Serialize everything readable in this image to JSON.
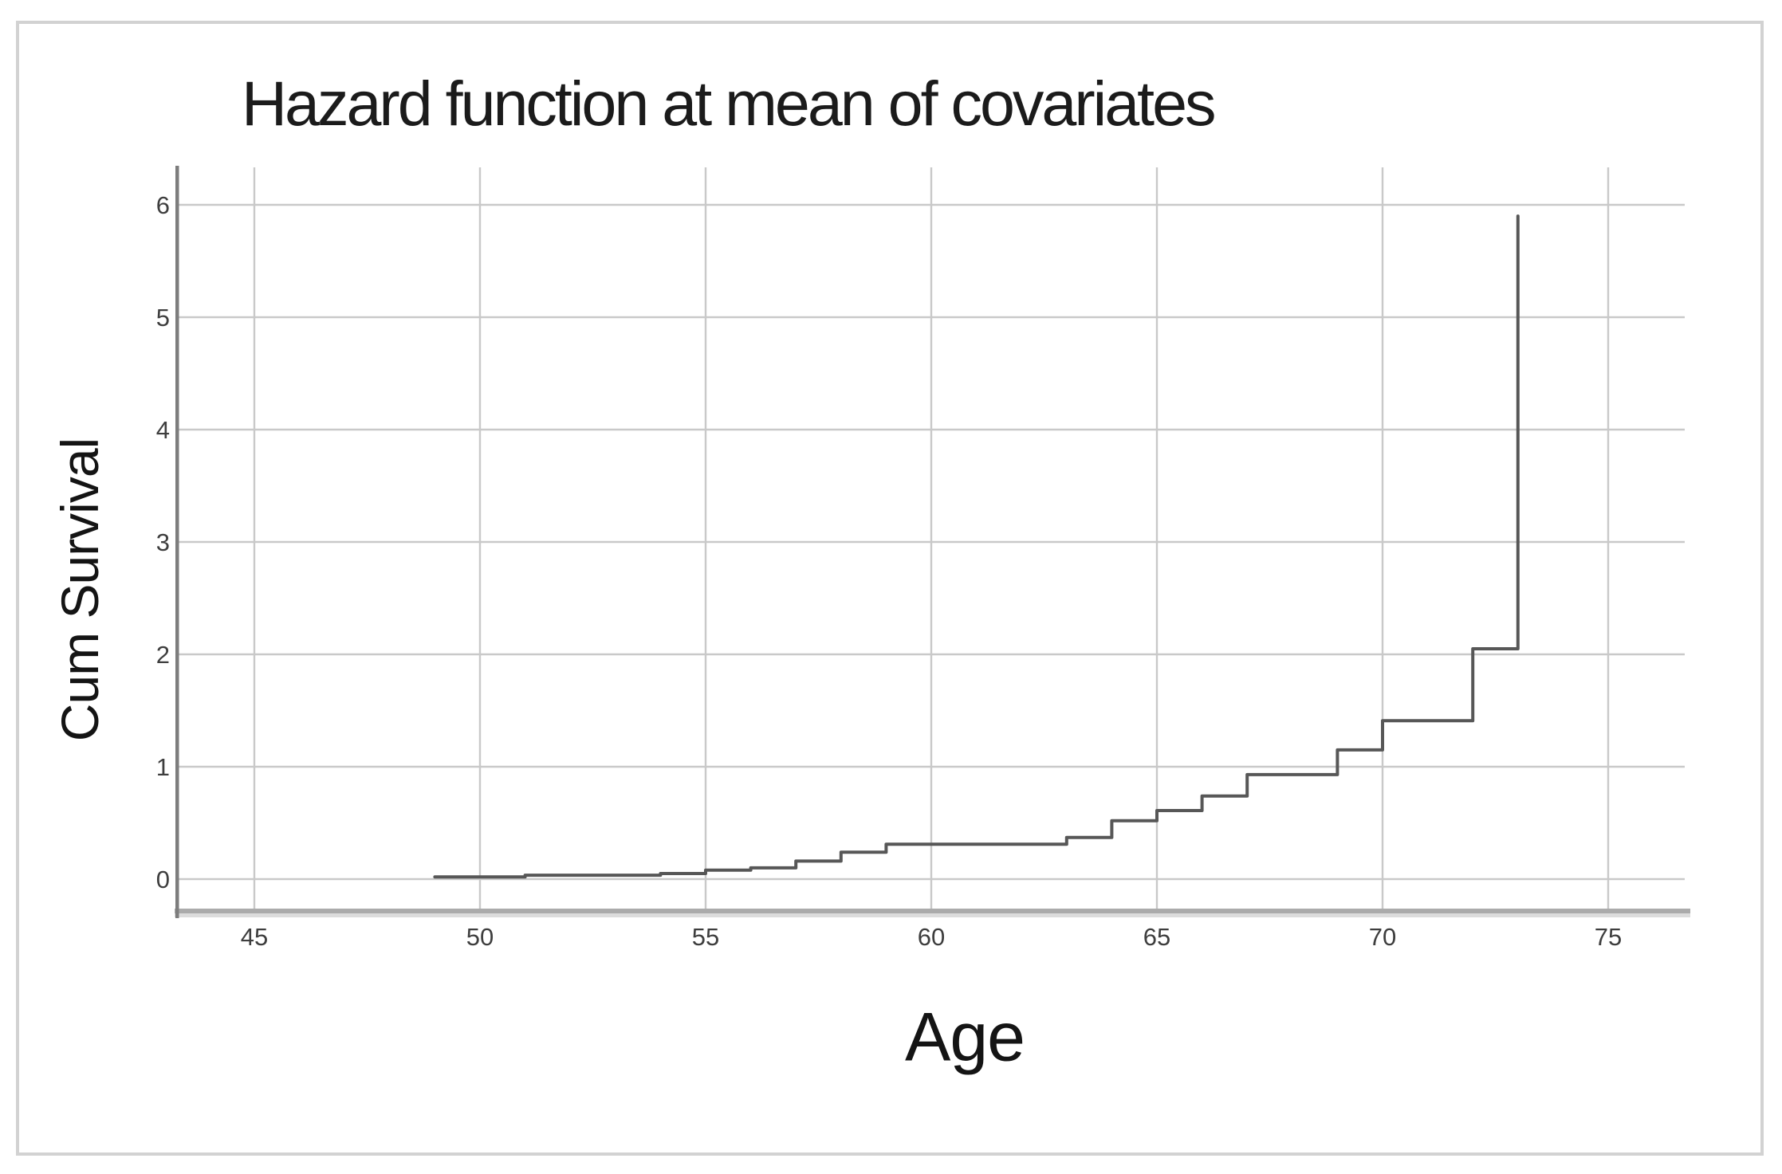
{
  "chart_data": {
    "type": "line",
    "subtype": "step",
    "title": "Hazard function at mean of covariates",
    "xlabel": "Age",
    "ylabel": "Cum Survival",
    "x_ticks": [
      45,
      50,
      55,
      60,
      65,
      70,
      75
    ],
    "y_ticks": [
      0,
      1,
      2,
      3,
      4,
      5,
      6
    ],
    "xlim": [
      43,
      77
    ],
    "ylim": [
      0,
      6
    ],
    "grid": "on",
    "legend": "none",
    "steps": [
      [
        49,
        0.02
      ],
      [
        51,
        0.035
      ],
      [
        54,
        0.05
      ],
      [
        55,
        0.08
      ],
      [
        56,
        0.1
      ],
      [
        57,
        0.16
      ],
      [
        58,
        0.24
      ],
      [
        59,
        0.31
      ],
      [
        63,
        0.37
      ],
      [
        64,
        0.52
      ],
      [
        65,
        0.61
      ],
      [
        66,
        0.74
      ],
      [
        67,
        0.93
      ],
      [
        69,
        1.15
      ],
      [
        70,
        1.41
      ],
      [
        72,
        2.05
      ],
      [
        73,
        5.9
      ]
    ],
    "colors": {
      "curve": "#575757",
      "gridline": "#c9c9c9",
      "axis_line": "#7d7d7d",
      "axis_band": "#ababab",
      "axis_band_shadow": "#dcdcdc",
      "tick_text": "#3e3e3e",
      "border": "#d2d2d2"
    }
  }
}
